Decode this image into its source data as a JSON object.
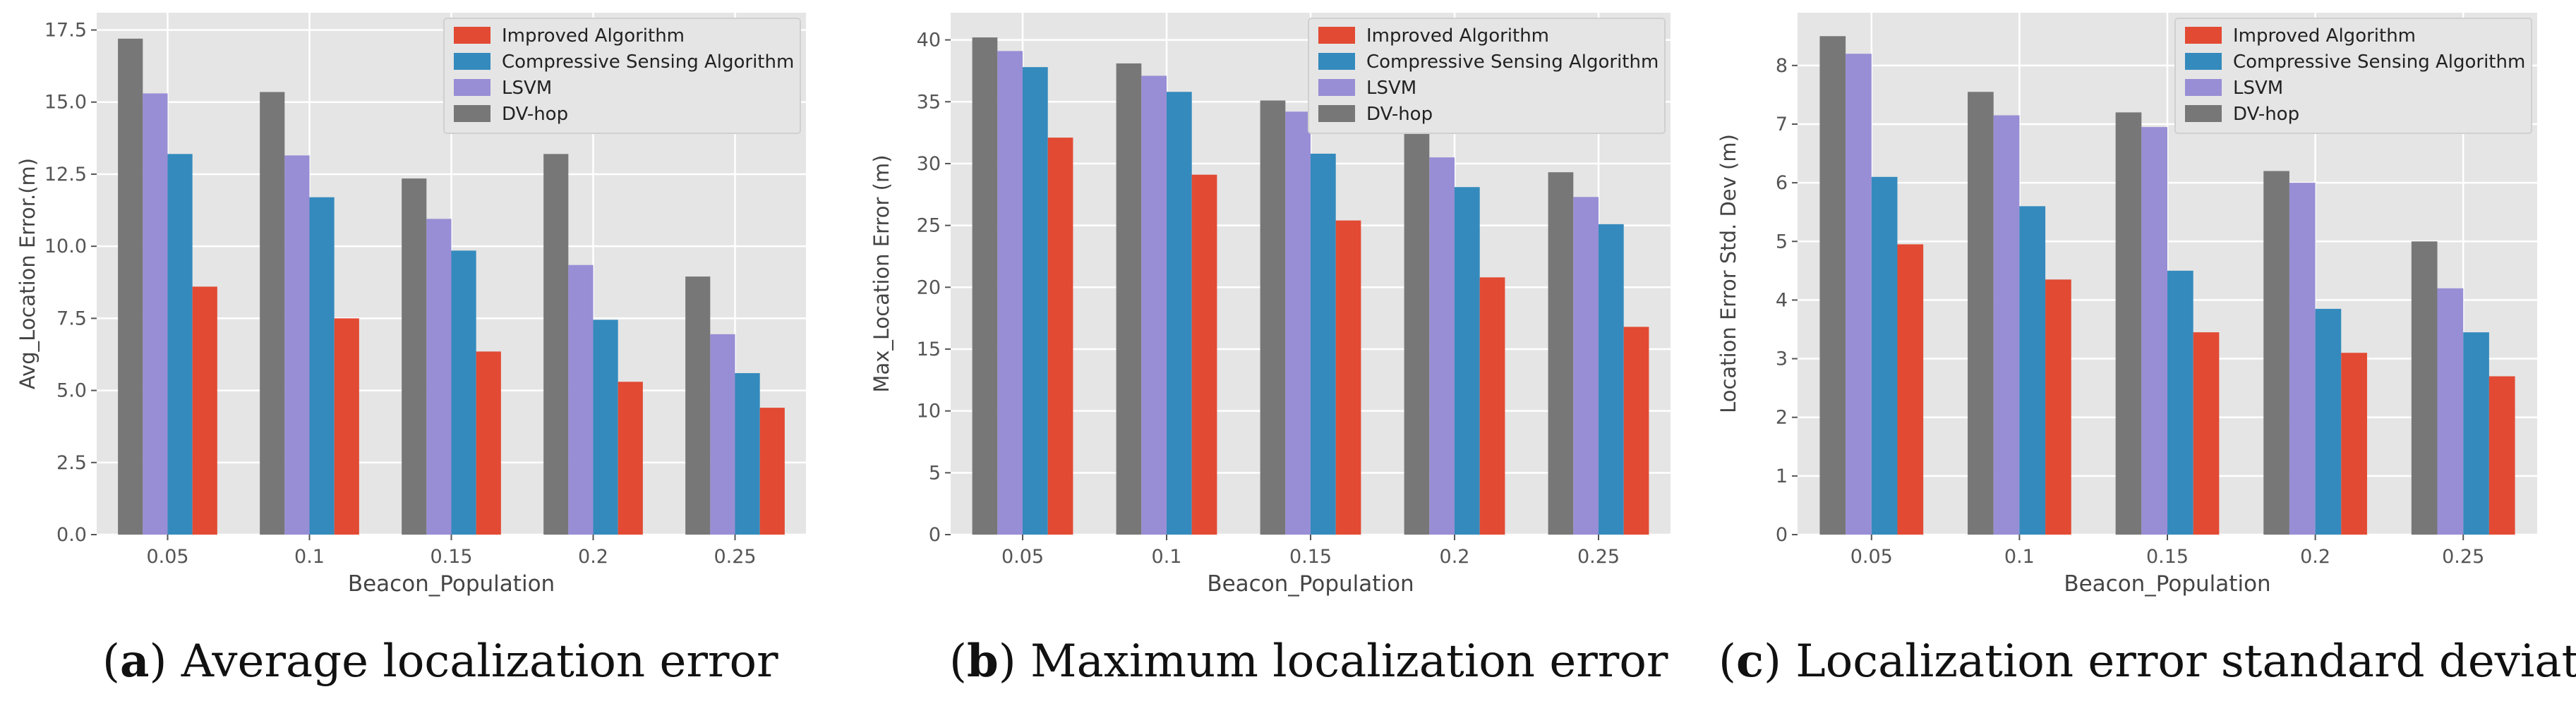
{
  "chart_data": [
    {
      "type": "bar",
      "panel_label": "a",
      "caption": "Average localization error",
      "xlabel": "Beacon_Population",
      "ylabel": "Avg_Location Error.(m)",
      "categories": [
        "0.05",
        "0.1",
        "0.15",
        "0.2",
        "0.25"
      ],
      "ylim": [
        0,
        18.1
      ],
      "yticks": [
        0.0,
        2.5,
        5.0,
        7.5,
        10.0,
        12.5,
        15.0,
        17.5
      ],
      "ytick_labels": [
        "0.0",
        "2.5",
        "5.0",
        "7.5",
        "10.0",
        "12.5",
        "15.0",
        "17.5"
      ],
      "legend_position": "top-right",
      "series": [
        {
          "name": "DV-hop",
          "values": [
            17.2,
            15.35,
            12.35,
            13.2,
            8.95
          ]
        },
        {
          "name": "LSVM",
          "values": [
            15.3,
            13.15,
            10.95,
            9.35,
            6.95
          ]
        },
        {
          "name": "Compressive Sensing Algorithm",
          "values": [
            13.2,
            11.7,
            9.85,
            7.45,
            5.6
          ]
        },
        {
          "name": "Improved Algorithm",
          "values": [
            8.6,
            7.5,
            6.35,
            5.3,
            4.4
          ]
        }
      ]
    },
    {
      "type": "bar",
      "panel_label": "b",
      "caption": "Maximum localization error",
      "xlabel": "Beacon_Population",
      "ylabel": "Max_Location Error (m)",
      "categories": [
        "0.05",
        "0.1",
        "0.15",
        "0.2",
        "0.25"
      ],
      "ylim": [
        0,
        42.2
      ],
      "yticks": [
        0,
        5,
        10,
        15,
        20,
        25,
        30,
        35,
        40
      ],
      "ytick_labels": [
        "0",
        "5",
        "10",
        "15",
        "20",
        "25",
        "30",
        "35",
        "40"
      ],
      "legend_position": "top-right",
      "series": [
        {
          "name": "DV-hop",
          "values": [
            40.2,
            38.1,
            35.1,
            32.4,
            29.3
          ]
        },
        {
          "name": "LSVM",
          "values": [
            39.1,
            37.1,
            34.2,
            30.5,
            27.3
          ]
        },
        {
          "name": "Compressive Sensing Algorithm",
          "values": [
            37.8,
            35.8,
            30.8,
            28.1,
            25.1
          ]
        },
        {
          "name": "Improved Algorithm",
          "values": [
            32.1,
            29.1,
            25.4,
            20.8,
            16.8
          ]
        }
      ]
    },
    {
      "type": "bar",
      "panel_label": "c",
      "caption": "Localization error standard deviation",
      "xlabel": "Beacon_Population",
      "ylabel": "Location Error Std. Dev (m)",
      "categories": [
        "0.05",
        "0.1",
        "0.15",
        "0.2",
        "0.25"
      ],
      "ylim": [
        0,
        8.9
      ],
      "yticks": [
        0,
        1,
        2,
        3,
        4,
        5,
        6,
        7,
        8
      ],
      "ytick_labels": [
        "0",
        "1",
        "2",
        "3",
        "4",
        "5",
        "6",
        "7",
        "8"
      ],
      "legend_position": "top-right",
      "series": [
        {
          "name": "DV-hop",
          "values": [
            8.5,
            7.55,
            7.2,
            6.2,
            5.0
          ]
        },
        {
          "name": "LSVM",
          "values": [
            8.2,
            7.15,
            6.95,
            6.0,
            4.2
          ]
        },
        {
          "name": "Compressive Sensing Algorithm",
          "values": [
            6.1,
            5.6,
            4.5,
            3.85,
            3.45
          ]
        },
        {
          "name": "Improved Algorithm",
          "values": [
            4.95,
            4.35,
            3.45,
            3.1,
            2.7
          ]
        }
      ]
    }
  ],
  "legend_order": [
    "Improved Algorithm",
    "Compressive Sensing Algorithm",
    "LSVM",
    "DV-hop"
  ],
  "series_colors": {
    "Improved Algorithm": "#e24a33",
    "Compressive Sensing Algorithm": "#348abd",
    "LSVM": "#988ed5",
    "DV-hop": "#777777"
  },
  "plot_background": "#e5e5e5",
  "grid_color": "#ffffff"
}
